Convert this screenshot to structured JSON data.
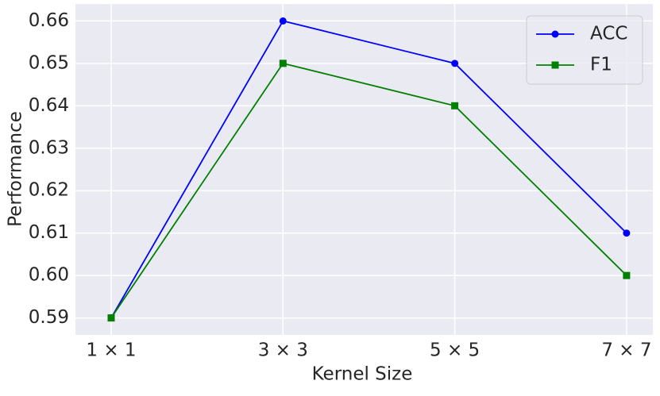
{
  "chart_data": {
    "type": "line",
    "categories": [
      "1 × 1",
      "3 × 3",
      "5 × 5",
      "7 × 7"
    ],
    "series": [
      {
        "name": "ACC",
        "color": "#0000ff",
        "marker": "circle",
        "values": [
          0.59,
          0.66,
          0.65,
          0.61
        ]
      },
      {
        "name": "F1",
        "color": "#008000",
        "marker": "square",
        "values": [
          0.59,
          0.65,
          0.64,
          0.6
        ]
      }
    ],
    "xlabel": "Kernel Size",
    "ylabel": "Performance",
    "ylim": [
      0.586,
      0.664
    ],
    "yticks": [
      0.59,
      {
        "value": 0.6,
        "label": "0.60"
      },
      0.61,
      0.62,
      0.63,
      0.64,
      0.65,
      0.66
    ],
    "grid": true,
    "legend": "upper right"
  }
}
